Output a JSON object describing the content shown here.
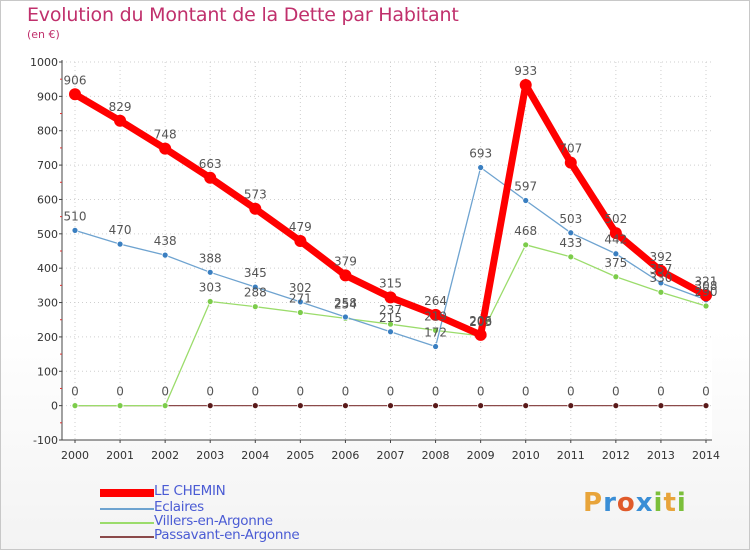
{
  "header": {
    "title": "Evolution du Montant de la Dette par Habitant",
    "subtitle": "(en €)"
  },
  "brand": {
    "letters": [
      "P",
      "r",
      "o",
      "x",
      "i",
      "t",
      "i"
    ],
    "colors": [
      "#e8a43a",
      "#3a8ed6",
      "#e05a2a",
      "#3a8ed6",
      "#7bbf3a",
      "#e8a43a",
      "#7bbf3a"
    ]
  },
  "chart_data": {
    "type": "line",
    "title": "Evolution du Montant de la Dette par Habitant",
    "ylabel": "(en €)",
    "xlabel": "",
    "categories": [
      "2000",
      "2001",
      "2002",
      "2003",
      "2004",
      "2005",
      "2006",
      "2007",
      "2008",
      "2009",
      "2010",
      "2011",
      "2012",
      "2013",
      "2014"
    ],
    "ylim": [
      -100,
      1000
    ],
    "yticks": [
      -100,
      0,
      100,
      200,
      300,
      400,
      500,
      600,
      700,
      800,
      900,
      1000
    ],
    "legend_position": "bottom-left",
    "series": [
      {
        "name": "LE CHEMIN",
        "color": "#ff0000",
        "values": [
          906,
          829,
          748,
          663,
          573,
          479,
          379,
          315,
          264,
          206,
          933,
          707,
          502,
          392,
          321
        ],
        "labels": [
          "906",
          "829",
          "748",
          "663",
          "573",
          "479",
          "379",
          "315",
          "264",
          "206",
          "933",
          "707",
          "502",
          "392",
          "321"
        ]
      },
      {
        "name": "Eclaires",
        "color": "#6ea3d0",
        "values": [
          510,
          470,
          438,
          388,
          345,
          302,
          258,
          215,
          172,
          693,
          597,
          503,
          442,
          357,
          308
        ],
        "labels": [
          "510",
          "470",
          "438",
          "388",
          "345",
          "302",
          "258",
          "215",
          "172",
          "693",
          "597",
          "503",
          "442",
          "357",
          "308"
        ]
      },
      {
        "name": "Villers-en-Argonne",
        "color": "#9bdc6b",
        "values": [
          0,
          0,
          0,
          303,
          288,
          271,
          254,
          237,
          219,
          203,
          468,
          433,
          375,
          330,
          290
        ],
        "labels": [
          "",
          "",
          "",
          "303",
          "288",
          "271",
          "254",
          "237",
          "219",
          "203",
          "468",
          "433",
          "375",
          "330",
          "290"
        ]
      },
      {
        "name": "Passavant-en-Argonne",
        "color": "#8b4a4a",
        "values": [
          0,
          0,
          0,
          0,
          0,
          0,
          0,
          0,
          0,
          0,
          0,
          0,
          0,
          0,
          0
        ],
        "labels": [
          "0",
          "0",
          "0",
          "0",
          "0",
          "0",
          "0",
          "0",
          "0",
          "0",
          "0",
          "0",
          "0",
          "0",
          "0"
        ]
      }
    ]
  }
}
